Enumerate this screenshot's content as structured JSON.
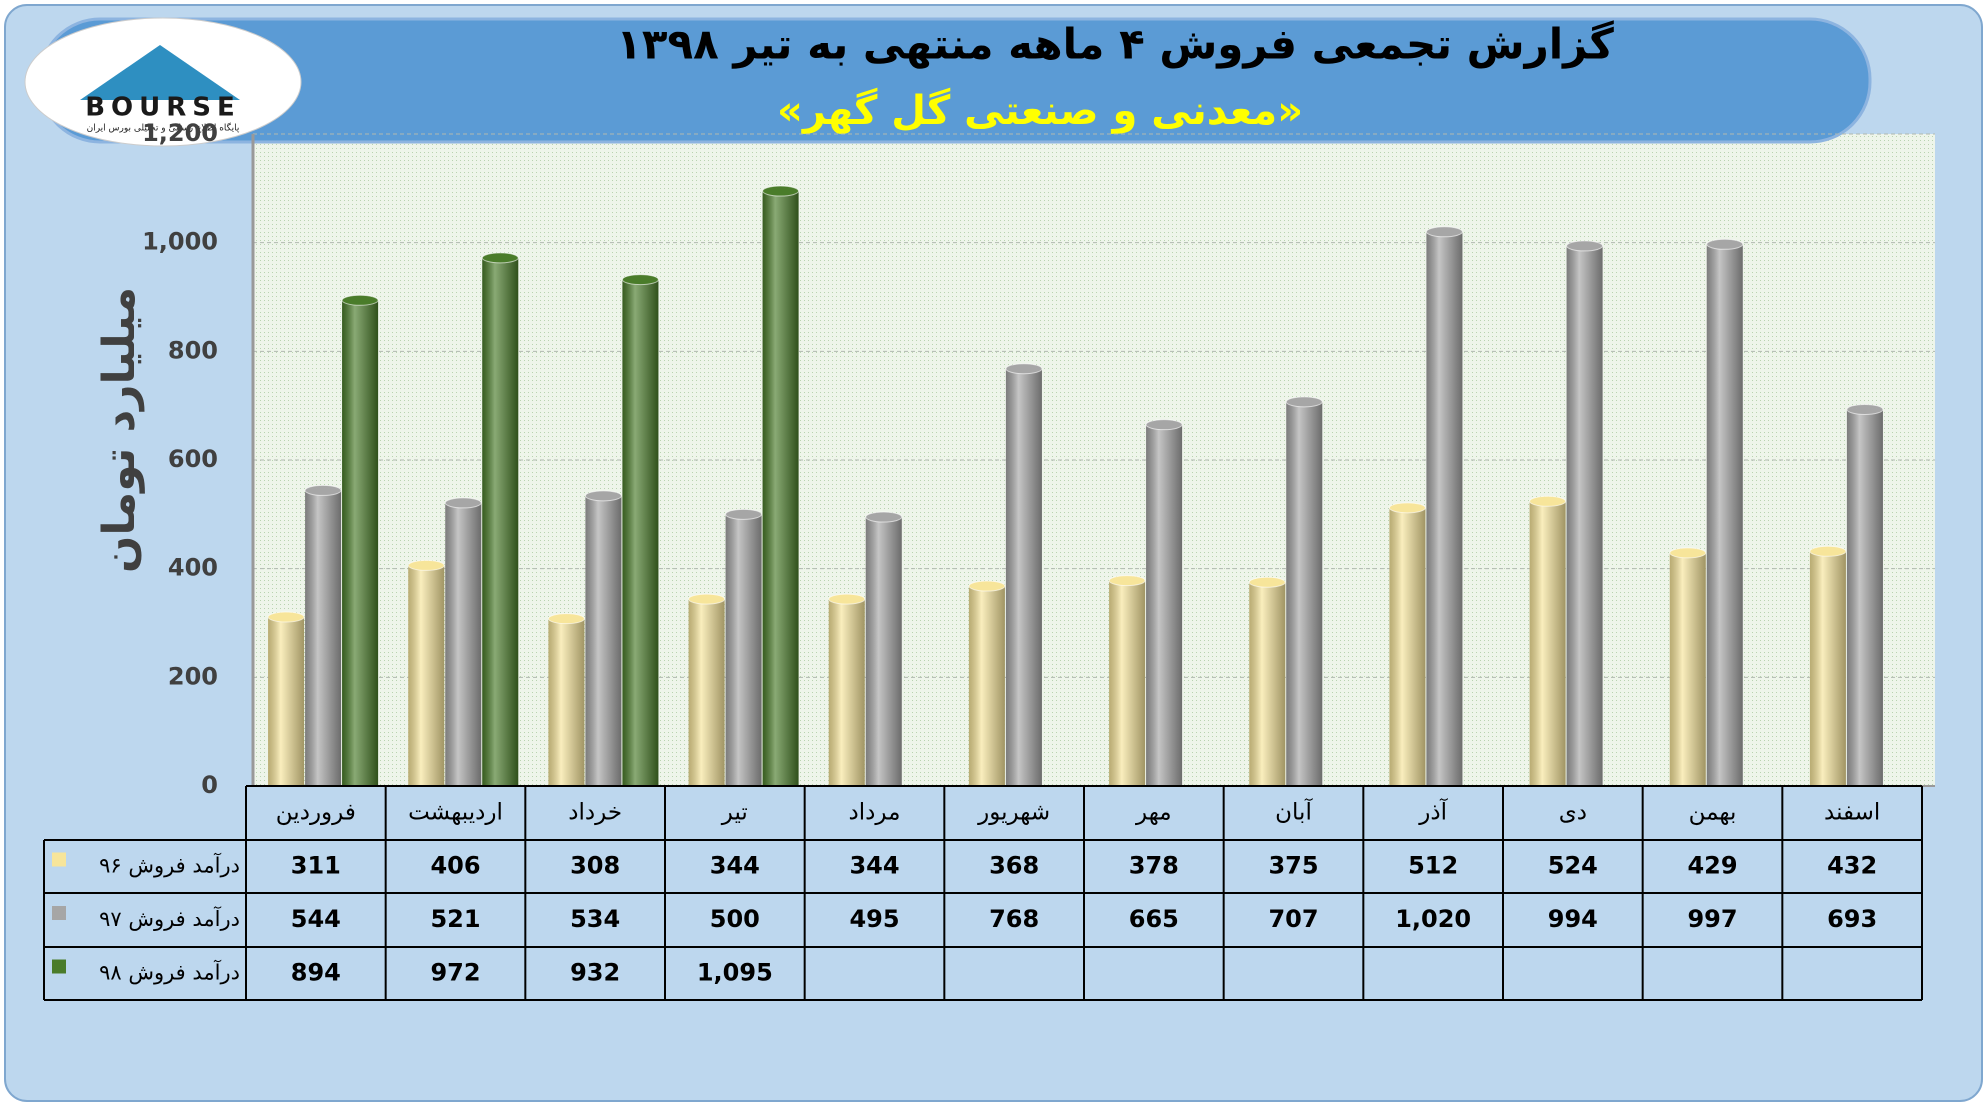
{
  "logo": {
    "text": "BOURSE",
    "tagline": "پایگاه اطلاع رسانی و تحلیلی بورس ایران"
  },
  "chart_data": {
    "type": "bar",
    "title": "گزارش تجمعی فروش ۴ ماهه منتهی به تیر ۱۳۹۸",
    "subtitle": "«معدنی و صنعتی گل گهر»",
    "y_label": "میلیارد تومان",
    "categories": [
      "فروردین",
      "اردیبهشت",
      "خرداد",
      "تیر",
      "مرداد",
      "شهریور",
      "مهر",
      "آبان",
      "آذر",
      "دی",
      "بهمن",
      "اسفند"
    ],
    "series": [
      {
        "name": "درآمد فروش ۹۶",
        "color": "#f7e59a",
        "values": [
          311,
          406,
          308,
          344,
          344,
          368,
          378,
          375,
          512,
          524,
          429,
          432
        ],
        "value_labels": [
          "311",
          "406",
          "308",
          "344",
          "344",
          "368",
          "378",
          "375",
          "512",
          "524",
          "429",
          "432"
        ]
      },
      {
        "name": "درآمد فروش ۹۷",
        "color": "#a6a6a6",
        "values": [
          544,
          521,
          534,
          500,
          495,
          768,
          665,
          707,
          1020,
          994,
          997,
          693
        ],
        "value_labels": [
          "544",
          "521",
          "534",
          "500",
          "495",
          "768",
          "665",
          "707",
          "1,020",
          "994",
          "997",
          "693"
        ]
      },
      {
        "name": "درآمد فروش ۹۸",
        "color": "#4a7c2a",
        "values": [
          894,
          972,
          932,
          1095,
          null,
          null,
          null,
          null,
          null,
          null,
          null,
          null
        ],
        "value_labels": [
          "894",
          "972",
          "932",
          "1,095",
          null,
          null,
          null,
          null,
          null,
          null,
          null,
          null
        ]
      }
    ],
    "ylim": [
      0,
      1200
    ],
    "yticks": [
      0,
      200,
      400,
      600,
      800,
      {
        "value": 1000,
        "label": "1,000"
      },
      {
        "value": 1200,
        "label": "1,200"
      }
    ],
    "grid": true
  }
}
